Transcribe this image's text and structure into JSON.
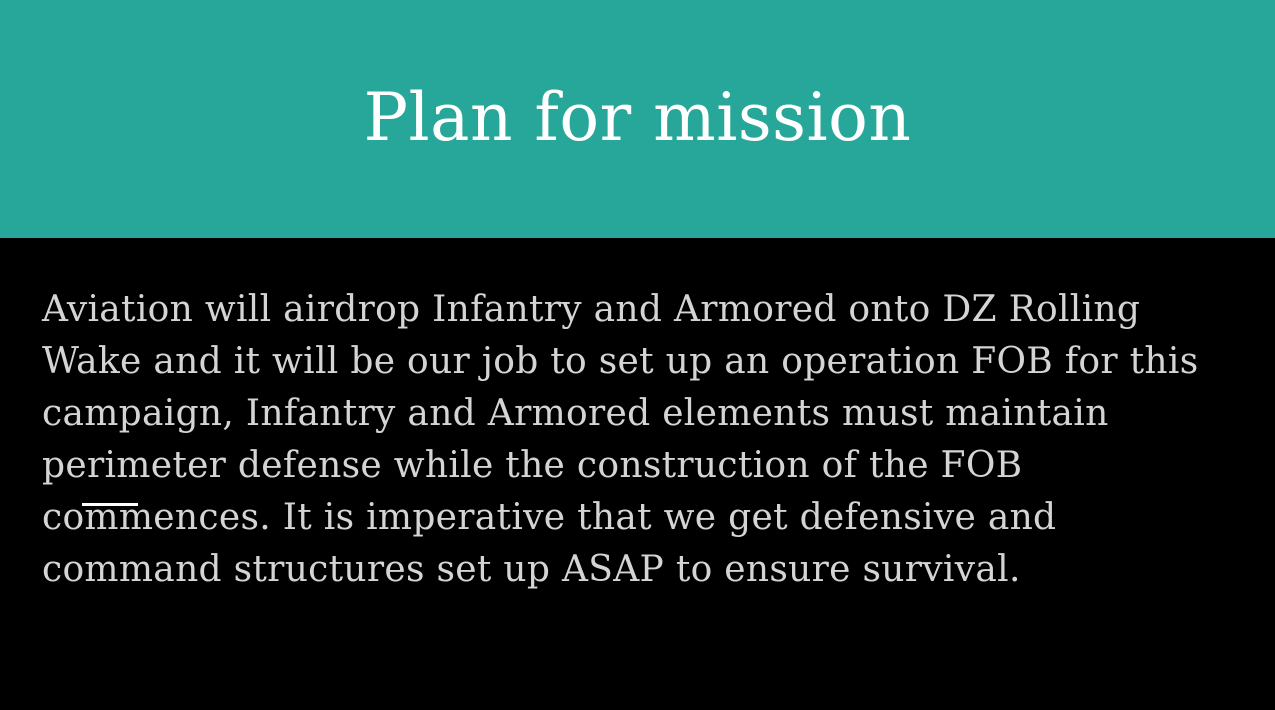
{
  "slide": {
    "title": "Plan for mission",
    "body": "Aviation will airdrop Infantry and Armored onto DZ Rolling Wake and it will be our job to set up an operation FOB for this campaign, Infantry and Armored elements must maintain perimeter defense while the construction of the FOB commences. It is imperative that we get defensive and command structures set up ASAP to ensure survival."
  },
  "colors": {
    "title_band": "#27a79a",
    "background": "#000000",
    "title_text": "#ffffff",
    "body_text": "#d4d4d4"
  }
}
